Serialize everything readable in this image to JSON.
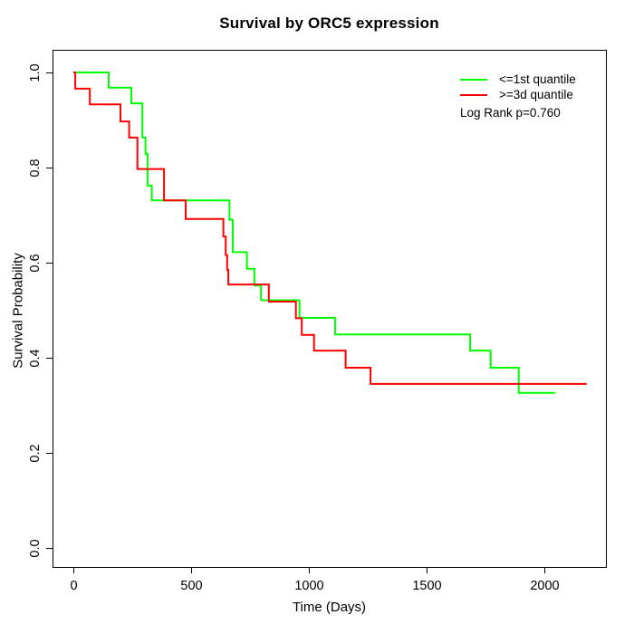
{
  "chart_data": {
    "type": "line",
    "chart_kind": "kaplan_meier_step",
    "title": "Survival by ORC5 expression",
    "xlabel": "Time (Days)",
    "ylabel": "Survival Probability",
    "xlim": [
      -88,
      2257
    ],
    "ylim": [
      -0.04,
      1.04
    ],
    "grid": false,
    "legend_position": "top-right",
    "legend": [
      {
        "label": "<=1st quantile",
        "color": "#00ff00"
      },
      {
        "label": ">=3d quantile",
        "color": "#ff0000"
      }
    ],
    "annotation": "Log Rank p=0.760",
    "x_ticks": [
      {
        "value": 0,
        "label": "0"
      },
      {
        "value": 500,
        "label": "500"
      },
      {
        "value": 1000,
        "label": "1000"
      },
      {
        "value": 1500,
        "label": "1500"
      },
      {
        "value": 2000,
        "label": "2000"
      }
    ],
    "y_ticks": [
      {
        "value": 0.0,
        "label": "0.0"
      },
      {
        "value": 0.2,
        "label": "0.2"
      },
      {
        "value": 0.4,
        "label": "0.4"
      },
      {
        "value": 0.6,
        "label": "0.6"
      },
      {
        "value": 0.8,
        "label": "0.8"
      },
      {
        "value": 1.0,
        "label": "1.0"
      }
    ],
    "series": [
      {
        "name": "<=1st quantile",
        "color": "#00ff00",
        "step_points": [
          [
            0,
            1.0
          ],
          [
            150,
            0.968
          ],
          [
            246,
            0.935
          ],
          [
            293,
            0.863
          ],
          [
            306,
            0.829
          ],
          [
            315,
            0.762
          ],
          [
            333,
            0.731
          ],
          [
            663,
            0.69
          ],
          [
            677,
            0.622
          ],
          [
            737,
            0.587
          ],
          [
            769,
            0.552
          ],
          [
            797,
            0.521
          ],
          [
            960,
            0.484
          ],
          [
            1112,
            0.449
          ],
          [
            1685,
            0.415
          ],
          [
            1772,
            0.379
          ],
          [
            1891,
            0.326
          ],
          [
            2047,
            0.326
          ]
        ]
      },
      {
        "name": ">=3d quantile",
        "color": "#ff0000",
        "step_points": [
          [
            0,
            1.0
          ],
          [
            8,
            0.966
          ],
          [
            70,
            0.933
          ],
          [
            200,
            0.897
          ],
          [
            237,
            0.863
          ],
          [
            272,
            0.797
          ],
          [
            385,
            0.731
          ],
          [
            477,
            0.692
          ],
          [
            637,
            0.655
          ],
          [
            647,
            0.616
          ],
          [
            653,
            0.585
          ],
          [
            658,
            0.554
          ],
          [
            830,
            0.518
          ],
          [
            945,
            0.483
          ],
          [
            970,
            0.448
          ],
          [
            1022,
            0.415
          ],
          [
            1156,
            0.379
          ],
          [
            1262,
            0.345
          ],
          [
            2180,
            0.345
          ]
        ]
      }
    ]
  }
}
